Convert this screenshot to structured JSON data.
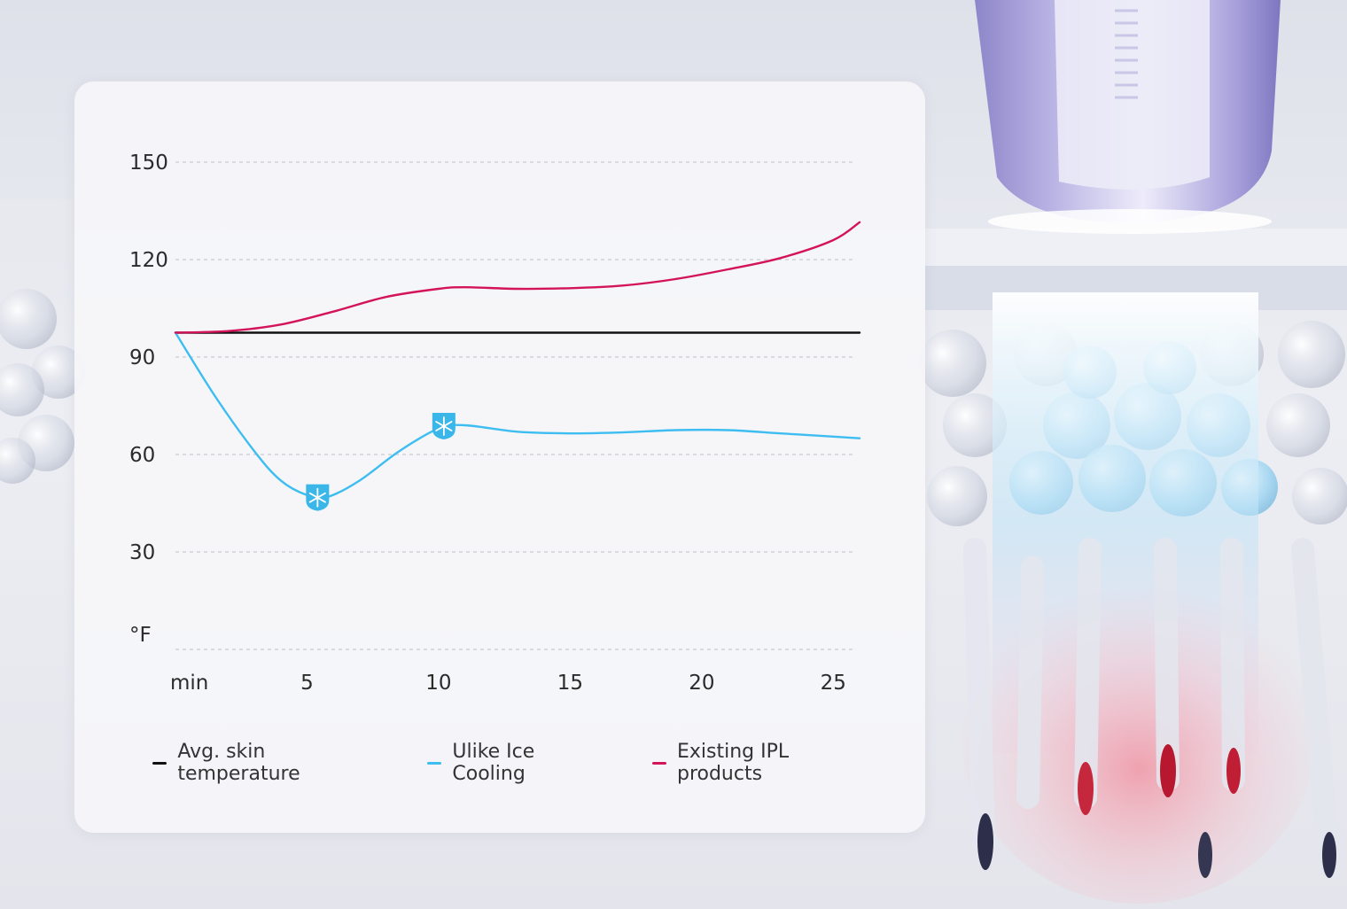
{
  "chart_data": {
    "type": "line",
    "y_unit_label": "°F",
    "x_unit_label": "min",
    "x_ticks": [
      5,
      10,
      15,
      20,
      25
    ],
    "y_ticks": [
      30,
      60,
      90,
      120,
      150
    ],
    "ylim": [
      0,
      150
    ],
    "xlim": [
      0,
      26
    ],
    "grid": true,
    "legend_position": "bottom",
    "series": [
      {
        "name": "Avg. skin temperature",
        "color": "#111111",
        "x": [
          0,
          26
        ],
        "y": [
          97.5,
          97.5
        ]
      },
      {
        "name": "Ulike Ice Cooling",
        "color": "#3dbdf0",
        "x": [
          0,
          1.5,
          3,
          4,
          5,
          5.8,
          7,
          8.5,
          10,
          11,
          13,
          15,
          17,
          19,
          21,
          23,
          25,
          26
        ],
        "y": [
          97.5,
          78,
          61,
          52,
          47.5,
          47,
          52,
          61,
          68,
          69,
          67,
          66.5,
          66.8,
          67.5,
          67.5,
          66.5,
          65.5,
          65
        ]
      },
      {
        "name": "Existing IPL products",
        "color": "#d4145a",
        "x": [
          0,
          2,
          4,
          6,
          8,
          10,
          11,
          13,
          15,
          17,
          19,
          21,
          23,
          25,
          26
        ],
        "y": [
          97.5,
          98,
          100,
          104,
          108.5,
          111,
          111.5,
          111,
          111.2,
          112,
          114,
          117,
          120.5,
          126,
          131.5
        ]
      }
    ],
    "markers": [
      {
        "icon": "snowflake-icon",
        "series": "Ulike Ice Cooling",
        "x": 5.4,
        "y": 47
      },
      {
        "icon": "snowflake-icon",
        "series": "Ulike Ice Cooling",
        "x": 10.2,
        "y": 69
      }
    ]
  },
  "legend": {
    "items": [
      {
        "label": "Avg. skin temperature",
        "color": "#111111"
      },
      {
        "label": "Ulike Ice Cooling",
        "color": "#3dbdf0"
      },
      {
        "label": "Existing IPL products",
        "color": "#d4145a"
      }
    ]
  }
}
